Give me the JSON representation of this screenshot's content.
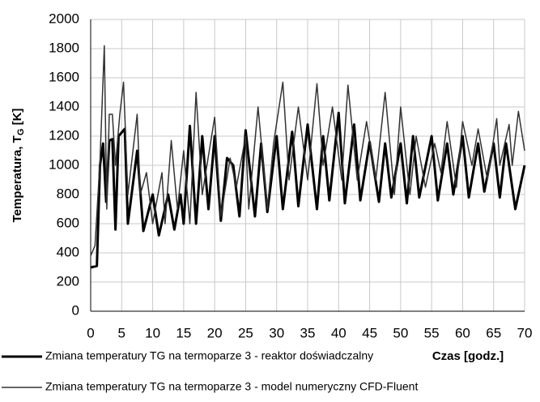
{
  "chart_data": {
    "type": "line",
    "ylabel": [
      "Temperatura, T",
      "G",
      " [K]"
    ],
    "xlabel": "Czas [godz.]",
    "xlim": [
      0,
      70
    ],
    "xticks": [
      0,
      5,
      10,
      15,
      20,
      25,
      30,
      35,
      40,
      45,
      50,
      55,
      60,
      65,
      70
    ],
    "ylim": [
      0,
      2000
    ],
    "yticks": [
      0,
      200,
      400,
      600,
      800,
      1000,
      1200,
      1400,
      1600,
      1800,
      2000
    ],
    "grid": true,
    "series": [
      {
        "name": "Zmiana temperatury TG na termoparze 3 - reaktor doświadczalny",
        "color": "#000000",
        "width": 3,
        "x": [
          0,
          1,
          1.5,
          2,
          2.5,
          3,
          3.5,
          4,
          4.5,
          5.5,
          6,
          7.5,
          8.5,
          10,
          11,
          12.5,
          13.5,
          14.5,
          15,
          16,
          17,
          18,
          19,
          20,
          21,
          22,
          23,
          24,
          25,
          26.5,
          27.5,
          28.5,
          30,
          31,
          32.5,
          33.5,
          35,
          36.5,
          37.5,
          38.5,
          40,
          41,
          42.5,
          43.5,
          45,
          46.5,
          47.5,
          48.5,
          50,
          51,
          52,
          53,
          55,
          56,
          57.5,
          58.5,
          60,
          61,
          62.5,
          63.5,
          65,
          66,
          67,
          68.5,
          69.5,
          70
        ],
        "values": [
          300,
          310,
          1000,
          1150,
          750,
          1170,
          1180,
          560,
          1200,
          1250,
          600,
          1100,
          550,
          800,
          520,
          800,
          560,
          800,
          600,
          1270,
          600,
          1200,
          700,
          1200,
          620,
          1050,
          1000,
          650,
          1240,
          650,
          1150,
          680,
          1200,
          700,
          1230,
          720,
          1280,
          700,
          1200,
          760,
          1360,
          740,
          1280,
          760,
          1160,
          750,
          1150,
          780,
          1150,
          740,
          1200,
          780,
          1200,
          760,
          1150,
          800,
          1200,
          780,
          1150,
          820,
          1150,
          780,
          1150,
          700,
          900,
          1000
        ]
      },
      {
        "name": "Zmiana temperatury TG na termoparze 3 - model numeryczny CFD-Fluent",
        "color": "#333333",
        "width": 1.5,
        "x": [
          0,
          0.7,
          1.5,
          2.2,
          2.6,
          3,
          3.5,
          4,
          4.7,
          5.3,
          6,
          7.5,
          8,
          9,
          10,
          11.5,
          12,
          13,
          14,
          15,
          16,
          17,
          18,
          20,
          21,
          22.5,
          23.5,
          25,
          25.5,
          27,
          28.5,
          29.5,
          31,
          32,
          33.5,
          35,
          36.5,
          37.5,
          39,
          40.5,
          41.5,
          43,
          44.5,
          46,
          47.5,
          49,
          50,
          51.5,
          52.5,
          54,
          55.5,
          56.5,
          57.5,
          59,
          60,
          61.5,
          62.5,
          64,
          65.5,
          66,
          67.5,
          68,
          69,
          70
        ],
        "values": [
          380,
          450,
          1030,
          1820,
          700,
          1350,
          1350,
          1000,
          1350,
          1570,
          800,
          1350,
          800,
          950,
          600,
          950,
          600,
          1170,
          700,
          1100,
          600,
          1500,
          800,
          1330,
          650,
          1050,
          850,
          1200,
          700,
          1400,
          700,
          1150,
          1570,
          900,
          1400,
          900,
          1560,
          1000,
          1400,
          900,
          1550,
          900,
          1300,
          900,
          1500,
          800,
          1400,
          800,
          1200,
          850,
          1150,
          950,
          1300,
          850,
          1300,
          1000,
          1250,
          900,
          1320,
          1000,
          1280,
          1000,
          1370,
          1100
        ]
      }
    ]
  }
}
